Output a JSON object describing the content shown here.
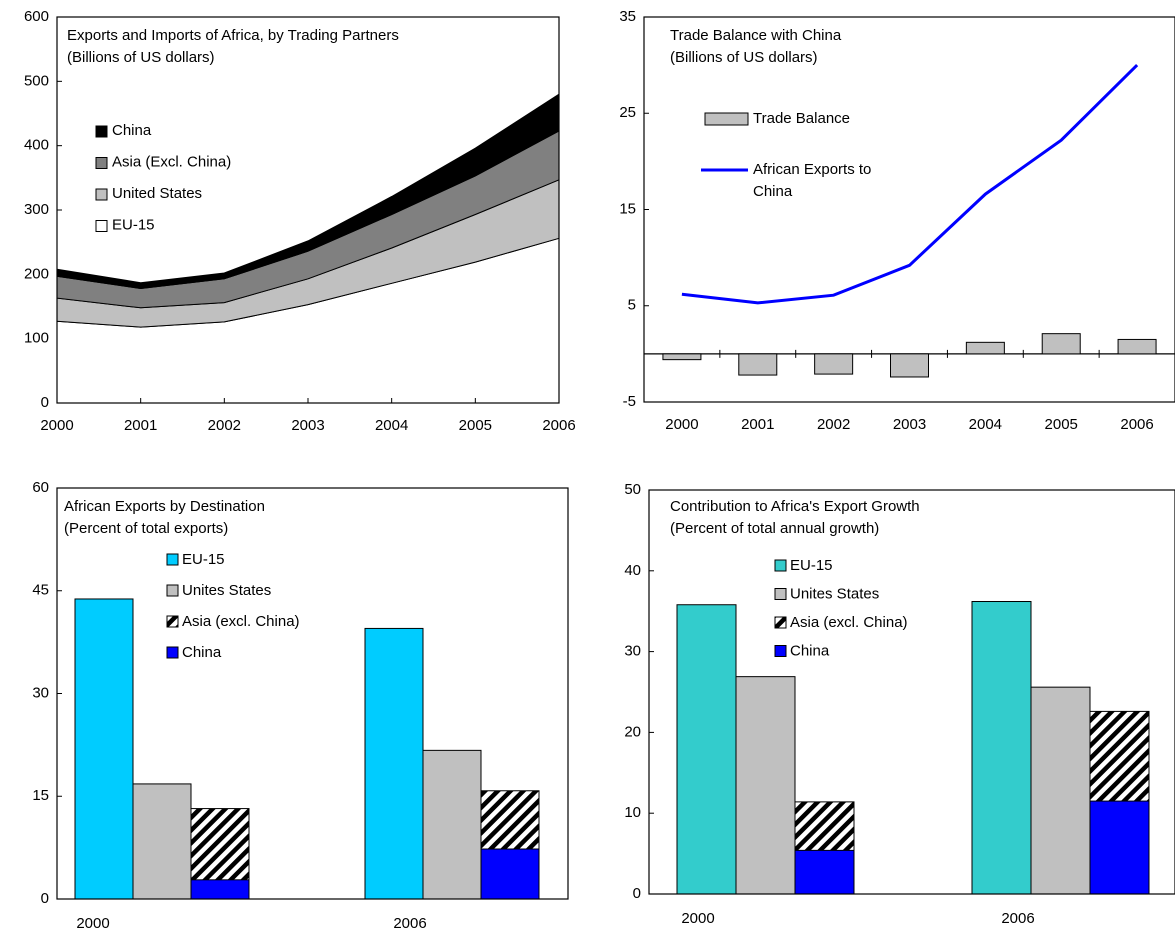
{
  "chart_data": [
    {
      "type": "area",
      "stacked": true,
      "title": "Exports and Imports of Africa, by Trading Partners",
      "subtitle": "(Billions of US dollars)",
      "x": [
        "2000",
        "2001",
        "2002",
        "2003",
        "2004",
        "2005",
        "2006"
      ],
      "ylim": [
        0,
        600
      ],
      "yticks": [
        "0",
        "100",
        "200",
        "300",
        "400",
        "500",
        "600"
      ],
      "series": [
        {
          "name": "EU-15",
          "color": "#ffffff",
          "values": [
            127,
            118,
            126,
            153,
            186,
            219,
            256
          ]
        },
        {
          "name": "United States",
          "color": "#c0c0c0",
          "values": [
            36,
            30,
            30,
            40,
            55,
            74,
            91
          ]
        },
        {
          "name": "Asia (Excl. China)",
          "color": "#808080",
          "values": [
            34,
            30,
            37,
            43,
            52,
            60,
            76
          ]
        },
        {
          "name": "China",
          "color": "#000000",
          "values": [
            11,
            9,
            9,
            16,
            28,
            43,
            57
          ]
        }
      ],
      "legend_order": [
        "China",
        "Asia (Excl. China)",
        "United States",
        "EU-15"
      ]
    },
    {
      "type": "bar+line",
      "title": "Trade Balance with China",
      "subtitle": "(Billions of US dollars)",
      "categories": [
        "2000",
        "2001",
        "2002",
        "2003",
        "2004",
        "2005",
        "2006"
      ],
      "ylim": [
        -5,
        35
      ],
      "yticks": [
        "-5",
        "5",
        "15",
        "25",
        "35"
      ],
      "series": [
        {
          "name": "Trade Balance",
          "kind": "bar",
          "color": "#c0c0c0",
          "values": [
            -0.6,
            -2.2,
            -2.1,
            -2.4,
            1.2,
            2.1,
            1.5
          ]
        },
        {
          "name": "African Exports to China",
          "kind": "line",
          "color": "#0000ff",
          "values": [
            6.2,
            5.3,
            6.1,
            9.2,
            16.6,
            22.2,
            30.0
          ]
        }
      ],
      "legend": {
        "bar_label": "Trade Balance",
        "line_label_1": "African Exports to",
        "line_label_2": "China"
      }
    },
    {
      "type": "bar",
      "title": "African Exports by Destination",
      "subtitle": "(Percent of total exports)",
      "categories": [
        "2000",
        "2006"
      ],
      "ylim": [
        0,
        60
      ],
      "yticks": [
        "0",
        "15",
        "30",
        "45",
        "60"
      ],
      "series": [
        {
          "name": "EU-15",
          "color": "#00ccff",
          "values": [
            43.8,
            39.5
          ]
        },
        {
          "name": "Unites States",
          "color": "#c0c0c0",
          "values": [
            16.8,
            21.7
          ]
        },
        {
          "name": "Asia (excl. China)",
          "color": "hatch",
          "values": [
            13.2,
            15.8
          ]
        },
        {
          "name": "China",
          "color": "#0000ff",
          "values": [
            2.8,
            7.3
          ]
        }
      ],
      "note": "Asia (excl. China) bar drawn stacked on top of China"
    },
    {
      "type": "bar",
      "title": "Contribution to Africa's Export Growth",
      "subtitle": "(Percent of total annual growth)",
      "categories": [
        "2000",
        "2006"
      ],
      "ylim": [
        0,
        50
      ],
      "yticks": [
        "0",
        "10",
        "20",
        "30",
        "40",
        "50"
      ],
      "series": [
        {
          "name": "EU-15",
          "color": "#33cccc",
          "values": [
            35.8,
            36.2
          ]
        },
        {
          "name": "Unites States",
          "color": "#c0c0c0",
          "values": [
            26.9,
            25.6
          ]
        },
        {
          "name": "Asia (excl. China)",
          "color": "hatch",
          "values": [
            11.4,
            22.6
          ]
        },
        {
          "name": "China",
          "color": "#0000ff",
          "values": [
            5.4,
            11.5
          ]
        }
      ],
      "note": "Asia (excl. China) bar drawn stacked on top of China"
    }
  ]
}
